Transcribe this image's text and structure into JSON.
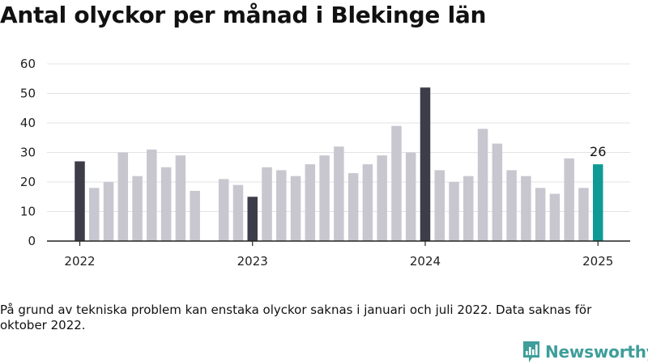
{
  "title": "Antal olyckor per månad i Blekinge län",
  "note": "På grund av tekniska problem kan enstaka olyckor saknas i januari och juli 2022. Data saknas för oktober 2022.",
  "brand": {
    "name": "Newsworthy",
    "color": "#3e9e9a"
  },
  "colors": {
    "default": "#c8c7d0",
    "january": "#3d3d4a",
    "latest": "#0f9a96",
    "axis": "#222222",
    "grid": "#e3e3e3"
  },
  "chart_data": {
    "type": "bar",
    "title": "Antal olyckor per månad i Blekinge län",
    "xlabel": "",
    "ylabel": "",
    "ylim": [
      0,
      60
    ],
    "yticks": [
      0,
      10,
      20,
      30,
      40,
      50,
      60
    ],
    "xticks": [
      {
        "label": "2022",
        "period": "2022-01"
      },
      {
        "label": "2023",
        "period": "2023-01"
      },
      {
        "label": "2024",
        "period": "2024-01"
      },
      {
        "label": "2025",
        "period": "2025-01"
      }
    ],
    "grid": true,
    "categories": [
      "2022-01",
      "2022-02",
      "2022-03",
      "2022-04",
      "2022-05",
      "2022-06",
      "2022-07",
      "2022-08",
      "2022-09",
      "2022-10",
      "2022-11",
      "2022-12",
      "2023-01",
      "2023-02",
      "2023-03",
      "2023-04",
      "2023-05",
      "2023-06",
      "2023-07",
      "2023-08",
      "2023-09",
      "2023-10",
      "2023-11",
      "2023-12",
      "2024-01",
      "2024-02",
      "2024-03",
      "2024-04",
      "2024-05",
      "2024-06",
      "2024-07",
      "2024-08",
      "2024-09",
      "2024-10",
      "2024-11",
      "2024-12",
      "2025-01"
    ],
    "values": [
      27,
      18,
      20,
      30,
      22,
      31,
      25,
      29,
      17,
      null,
      21,
      19,
      15,
      25,
      24,
      22,
      26,
      29,
      32,
      23,
      26,
      29,
      39,
      30,
      52,
      24,
      20,
      22,
      38,
      33,
      24,
      22,
      18,
      16,
      28,
      18,
      26
    ],
    "annotations": [
      {
        "period": "2025-01",
        "text": "26"
      }
    ]
  }
}
